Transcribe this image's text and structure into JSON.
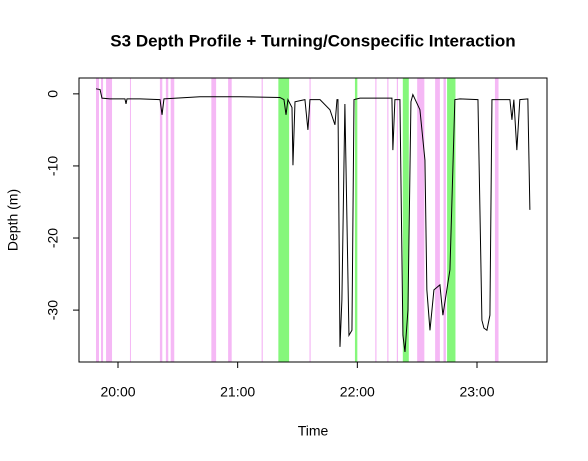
{
  "chart_data": {
    "type": "line",
    "title": "S3 Depth Profile + Turning/Conspecific Interaction",
    "xlabel": "Time",
    "ylabel": "Depth (m)",
    "color": "#000000",
    "x": [
      19.816,
      19.85,
      19.866,
      19.933,
      20.058,
      20.067,
      20.075,
      20.184,
      20.351,
      20.368,
      20.384,
      20.685,
      21.019,
      21.353,
      21.387,
      21.404,
      21.42,
      21.454,
      21.462,
      21.479,
      21.562,
      21.587,
      21.604,
      21.688,
      21.771,
      21.813,
      21.83,
      21.838,
      21.855,
      21.871,
      21.896,
      21.93,
      21.955,
      21.972,
      22.022,
      22.289,
      22.297,
      22.314,
      22.356,
      22.381,
      22.398,
      22.423,
      22.448,
      22.464,
      22.523,
      22.565,
      22.581,
      22.607,
      22.64,
      22.69,
      22.715,
      22.774,
      22.815,
      22.857,
      23.008,
      23.041,
      23.058,
      23.083,
      23.108,
      23.125,
      23.275,
      23.292,
      23.308,
      23.333,
      23.358,
      23.425,
      23.442
    ],
    "values": [
      0.7,
      0.6,
      -0.6,
      -0.7,
      -0.7,
      -1.4,
      -0.7,
      -0.7,
      -0.8,
      -2.9,
      -0.7,
      -0.4,
      -0.4,
      -0.5,
      -0.8,
      -2.9,
      -0.8,
      -1.9,
      -9.9,
      -1.1,
      -0.8,
      -5,
      -0.8,
      -0.8,
      -2.2,
      -4.3,
      -0.8,
      -0.8,
      -35.1,
      -28.6,
      -1.4,
      -33.5,
      -32.8,
      -0.8,
      -0.6,
      -0.6,
      -7.8,
      -0.8,
      -0.8,
      -33.5,
      -35.8,
      -30,
      -1.1,
      -0.1,
      -2.2,
      -9.2,
      -27.2,
      -32.8,
      -27.2,
      -26.5,
      -30.7,
      -24.4,
      -0.8,
      -0.7,
      -0.8,
      -31.4,
      -32.5,
      -32.8,
      -30.7,
      -0.8,
      -0.8,
      -3.6,
      -0.8,
      -7.8,
      -0.8,
      -0.7,
      -16.1
    ],
    "bands": [
      {
        "start": 19.816,
        "end": 19.841,
        "color": "#f2a6f2"
      },
      {
        "start": 19.858,
        "end": 19.875,
        "color": "#f2a6f2"
      },
      {
        "start": 19.9,
        "end": 19.95,
        "color": "#f2a6f2"
      },
      {
        "start": 20.1,
        "end": 20.108,
        "color": "#f2a6f2"
      },
      {
        "start": 20.35,
        "end": 20.37,
        "color": "#f2a6f2"
      },
      {
        "start": 20.4,
        "end": 20.42,
        "color": "#f2a6f2"
      },
      {
        "start": 20.44,
        "end": 20.47,
        "color": "#f2a6f2"
      },
      {
        "start": 20.78,
        "end": 20.82,
        "color": "#f2a6f2"
      },
      {
        "start": 20.92,
        "end": 20.95,
        "color": "#f2a6f2"
      },
      {
        "start": 21.2,
        "end": 21.21,
        "color": "#f2a6f2"
      },
      {
        "start": 21.6,
        "end": 21.61,
        "color": "#f2a6f2"
      },
      {
        "start": 22.15,
        "end": 22.16,
        "color": "#f2a6f2"
      },
      {
        "start": 22.25,
        "end": 22.26,
        "color": "#f2a6f2"
      },
      {
        "start": 22.33,
        "end": 22.34,
        "color": "#f2a6f2"
      },
      {
        "start": 22.5,
        "end": 22.56,
        "color": "#f2a6f2"
      },
      {
        "start": 22.65,
        "end": 22.69,
        "color": "#f2a6f2"
      },
      {
        "start": 22.72,
        "end": 22.74,
        "color": "#f2a6f2"
      },
      {
        "start": 23.15,
        "end": 23.18,
        "color": "#f2a6f2"
      },
      {
        "start": 21.34,
        "end": 21.43,
        "color": "#66f55a"
      },
      {
        "start": 21.98,
        "end": 22.0,
        "color": "#66f55a"
      },
      {
        "start": 22.38,
        "end": 22.43,
        "color": "#66f55a"
      },
      {
        "start": 22.75,
        "end": 22.82,
        "color": "#66f55a"
      }
    ],
    "xlim": [
      19.674,
      23.585
    ],
    "xticks": [
      {
        "value": 20,
        "label": "20:00"
      },
      {
        "value": 21,
        "label": "21:00"
      },
      {
        "value": 22,
        "label": "22:00"
      },
      {
        "value": 23,
        "label": "23:00"
      }
    ],
    "ylim": [
      -37.2,
      2.2
    ],
    "yticks": [
      0,
      -10,
      -20,
      -30
    ]
  }
}
